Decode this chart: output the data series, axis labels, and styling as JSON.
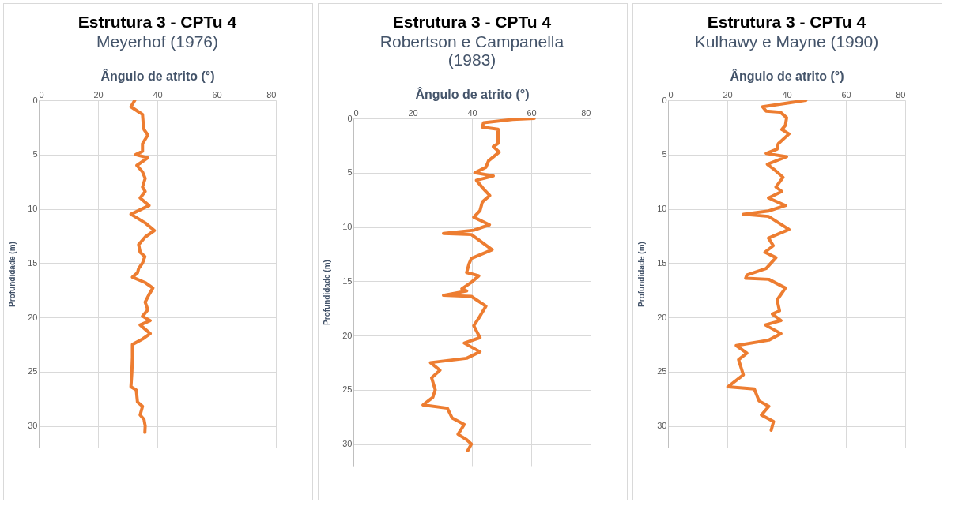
{
  "chart_data": [
    {
      "type": "line",
      "title": "Estrutura 3 - CPTu 4",
      "subtitle": "Meyerhof (1976)",
      "xlabel": "Ângulo de atrito (°)",
      "ylabel": "Profundidade (m)",
      "orientation": "horizontal",
      "xlim": [
        0,
        80
      ],
      "xticks": [
        0,
        20,
        40,
        60,
        80
      ],
      "ylim": [
        32,
        0
      ],
      "yticks": [
        0,
        5,
        10,
        15,
        20,
        25,
        30
      ],
      "grid": true,
      "marker": "none",
      "line_style": "solid",
      "series": [
        {
          "color": "#ed7d31",
          "x": [
            0,
            0.6,
            1,
            1.3,
            2,
            2.7,
            3.2,
            4,
            4.7,
            5,
            5.3,
            6,
            6.6,
            7.2,
            8,
            8.4,
            9,
            9.7,
            10.5,
            11.3,
            12,
            12.6,
            13.3,
            14,
            14.4,
            15,
            15.5,
            15.9,
            16.3,
            16.8,
            17.3,
            17.9,
            18.6,
            19.3,
            19.9,
            20.3,
            20.7,
            21.5,
            22,
            22.5,
            23.7,
            25.1,
            26.4,
            26.7,
            27.8,
            28.2,
            29,
            29.4,
            30,
            30.6
          ],
          "values": [
            32.4,
            31.1,
            33.3,
            35,
            35.2,
            35.5,
            36.8,
            35,
            35,
            32.7,
            36.8,
            33.1,
            35,
            35.9,
            35,
            35.9,
            34.2,
            37.2,
            31.1,
            35.9,
            39,
            35.9,
            33.7,
            34.2,
            35.8,
            35,
            33.7,
            33.3,
            31.6,
            35.9,
            38.5,
            37.2,
            35.9,
            36.8,
            35,
            37.6,
            34.2,
            37.6,
            35,
            31.6,
            31.6,
            31.4,
            31.1,
            32.9,
            33.3,
            35,
            34.2,
            35.5,
            35.9,
            35.8
          ]
        }
      ]
    },
    {
      "type": "line",
      "title": "Estrutura 3 - CPTu 4",
      "subtitle": "Robertson e Campanella (1983)",
      "xlabel": "Ângulo de atrito (°)",
      "ylabel": "Profundidade (m)",
      "orientation": "horizontal",
      "xlim": [
        0,
        80
      ],
      "xticks": [
        0,
        20,
        40,
        60,
        80
      ],
      "ylim": [
        32,
        0
      ],
      "yticks": [
        0,
        5,
        10,
        15,
        20,
        25,
        30
      ],
      "grid": true,
      "marker": "none",
      "line_style": "solid",
      "series": [
        {
          "color": "#ed7d31",
          "x": [
            0,
            0.1,
            0.4,
            0.8,
            1,
            2.3,
            2.6,
            3.1,
            3.9,
            4.5,
            5,
            5.3,
            5.7,
            6.5,
            7.1,
            7.7,
            8.5,
            9.1,
            9.8,
            10.3,
            10.6,
            10.7,
            12.1,
            12.9,
            13.4,
            14.2,
            14.5,
            15.1,
            15.7,
            15.9,
            16.3,
            16.4,
            17.3,
            18.4,
            19.1,
            20.2,
            20.7,
            21.5,
            22.1,
            22.5,
            23.2,
            23.9,
            25,
            25.7,
            26.4,
            26.7,
            27.6,
            28.2,
            29.1,
            29.6,
            30,
            30.6
          ],
          "values": [
            61,
            53.7,
            43.9,
            43.5,
            48.8,
            48.8,
            47.2,
            49.2,
            45.6,
            44.7,
            41,
            47.2,
            41.5,
            43.9,
            46,
            43.5,
            42.7,
            40.6,
            45.9,
            40.6,
            30.4,
            39.8,
            46.8,
            39.8,
            39,
            38.2,
            42.3,
            39.8,
            36.6,
            38.2,
            30.4,
            39.8,
            44.7,
            42.3,
            40.6,
            42.7,
            37.4,
            42.7,
            38.2,
            26,
            29.2,
            26.4,
            27.6,
            26.8,
            23.5,
            31.7,
            33.3,
            37.4,
            35.3,
            38.2,
            39.8,
            38.6
          ]
        }
      ]
    },
    {
      "type": "line",
      "title": "Estrutura 3 - CPTu 4",
      "subtitle": "Kulhawy e Mayne (1990)",
      "xlabel": "Ângulo de atrito (°)",
      "ylabel": "Profundidade (m)",
      "orientation": "horizontal",
      "xlim": [
        0,
        80
      ],
      "xticks": [
        0,
        20,
        40,
        60,
        80
      ],
      "ylim": [
        32,
        0
      ],
      "yticks": [
        0,
        5,
        10,
        15,
        20,
        25,
        30
      ],
      "grid": true,
      "marker": "none",
      "line_style": "solid",
      "series": [
        {
          "color": "#ed7d31",
          "x": [
            0,
            0.26,
            0.6,
            1,
            1.1,
            1.6,
            2.3,
            2.7,
            3.1,
            4,
            4.5,
            4.9,
            5.2,
            5.9,
            6.4,
            7.1,
            8,
            8.4,
            9,
            9.7,
            10.2,
            10.5,
            10.7,
            11.9,
            12.7,
            13.4,
            14,
            14.5,
            15.5,
            16.1,
            16.4,
            16.5,
            17.3,
            18.4,
            19.4,
            19.7,
            20.3,
            20.7,
            21.5,
            22.1,
            22.6,
            23.3,
            23.9,
            25.3,
            26.4,
            26.6,
            27.7,
            28.2,
            29,
            29.6,
            30.4
          ],
          "values": [
            46.5,
            40.4,
            31.9,
            33.1,
            37.9,
            40,
            39.6,
            38.4,
            40.8,
            37.2,
            36.8,
            33.1,
            40,
            33.5,
            35.9,
            38.8,
            36.4,
            38.4,
            33.9,
            39.6,
            33.9,
            25.4,
            33.9,
            40.8,
            33.9,
            35.5,
            32.7,
            36.4,
            33.1,
            26.6,
            26.2,
            34,
            39.6,
            36.8,
            37.6,
            35.2,
            38.1,
            32.8,
            38.1,
            34,
            23,
            26.6,
            23.8,
            25.4,
            20.2,
            29.1,
            30.7,
            34,
            31.5,
            35.6,
            34.8
          ]
        }
      ]
    }
  ]
}
